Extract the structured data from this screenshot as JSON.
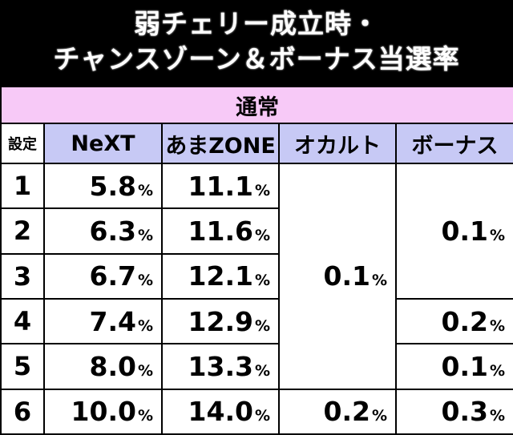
{
  "title": {
    "line1": "弱チェリー成立時・",
    "line2": "チャンスゾーン＆ボーナス当選率"
  },
  "section_label": "通常",
  "columns": [
    "設定",
    "NeXT",
    "あまZONE",
    "オカルト",
    "ボーナス"
  ],
  "percent_symbol": "%",
  "rows": [
    {
      "setting": "1",
      "next": "5.8",
      "amazone": "11.1"
    },
    {
      "setting": "2",
      "next": "6.3",
      "amazone": "11.6"
    },
    {
      "setting": "3",
      "next": "6.7",
      "amazone": "12.1"
    },
    {
      "setting": "4",
      "next": "7.4",
      "amazone": "12.9"
    },
    {
      "setting": "5",
      "next": "8.0",
      "amazone": "13.3"
    },
    {
      "setting": "6",
      "next": "10.0",
      "amazone": "14.0"
    }
  ],
  "occult": {
    "settings_1_5": "0.1",
    "setting_6": "0.2"
  },
  "bonus": {
    "settings_1_3": "0.1",
    "setting_4": "0.2",
    "setting_5": "0.1",
    "setting_6": "0.3"
  }
}
